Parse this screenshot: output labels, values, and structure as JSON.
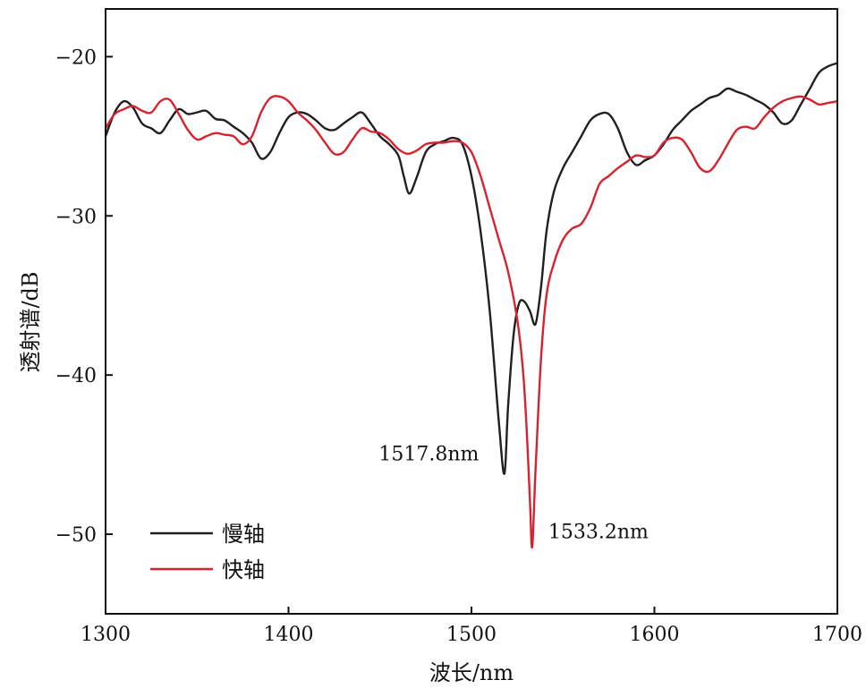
{
  "chart_data": {
    "type": "line",
    "title": "",
    "xlabel": "波长/nm",
    "ylabel": "透射谱/dB",
    "xlim": [
      1300,
      1700
    ],
    "ylim": [
      -55,
      -17
    ],
    "xticks": [
      1300,
      1400,
      1500,
      1600,
      1700
    ],
    "yticks": [
      -20,
      -30,
      -40,
      -50
    ],
    "xtick_labels": [
      "1300",
      "1400",
      "1500",
      "1600",
      "1700"
    ],
    "ytick_labels": [
      "−20",
      "−30",
      "−40",
      "−50"
    ],
    "grid": false,
    "legend_position": "bottom-left",
    "series": [
      {
        "name": "慢轴",
        "color": "#231f20",
        "x": [
          1300,
          1305,
          1310,
          1315,
          1320,
          1325,
          1330,
          1335,
          1340,
          1345,
          1350,
          1355,
          1360,
          1365,
          1370,
          1375,
          1380,
          1385,
          1390,
          1395,
          1400,
          1405,
          1410,
          1415,
          1420,
          1425,
          1430,
          1435,
          1440,
          1445,
          1450,
          1455,
          1460,
          1463,
          1466,
          1470,
          1475,
          1480,
          1485,
          1490,
          1495,
          1500,
          1505,
          1510,
          1515,
          1518,
          1520,
          1523,
          1526,
          1529,
          1532,
          1535,
          1538,
          1541,
          1545,
          1550,
          1555,
          1560,
          1565,
          1570,
          1575,
          1580,
          1585,
          1590,
          1595,
          1600,
          1605,
          1610,
          1615,
          1620,
          1625,
          1630,
          1635,
          1640,
          1645,
          1650,
          1655,
          1660,
          1665,
          1670,
          1675,
          1680,
          1685,
          1690,
          1695,
          1700
        ],
        "y": [
          -25.0,
          -23.5,
          -22.8,
          -23.2,
          -24.2,
          -24.5,
          -24.8,
          -24.0,
          -23.3,
          -23.6,
          -23.5,
          -23.4,
          -23.9,
          -24.0,
          -24.4,
          -24.8,
          -25.4,
          -26.4,
          -26.0,
          -24.8,
          -23.8,
          -23.5,
          -23.6,
          -24.0,
          -24.5,
          -24.6,
          -24.2,
          -23.8,
          -23.5,
          -24.2,
          -25.0,
          -25.5,
          -26.2,
          -27.5,
          -28.6,
          -27.6,
          -26.0,
          -25.5,
          -25.3,
          -25.1,
          -25.5,
          -27.5,
          -31.0,
          -36.0,
          -43.0,
          -46.2,
          -42.0,
          -37.5,
          -35.5,
          -35.4,
          -36.0,
          -36.8,
          -34.5,
          -31.0,
          -28.5,
          -27.0,
          -26.0,
          -25.0,
          -24.0,
          -23.6,
          -23.6,
          -24.5,
          -26.0,
          -26.8,
          -26.5,
          -26.2,
          -25.5,
          -24.6,
          -24.0,
          -23.4,
          -23.0,
          -22.6,
          -22.4,
          -22.0,
          -22.2,
          -22.4,
          -22.7,
          -23.0,
          -23.5,
          -24.2,
          -24.0,
          -23.0,
          -22.0,
          -21.0,
          -20.6,
          -20.4
        ]
      },
      {
        "name": "快轴",
        "color": "#d6232f",
        "x": [
          1300,
          1305,
          1310,
          1315,
          1320,
          1325,
          1330,
          1335,
          1340,
          1345,
          1350,
          1355,
          1360,
          1365,
          1370,
          1375,
          1380,
          1385,
          1390,
          1395,
          1400,
          1405,
          1410,
          1415,
          1420,
          1425,
          1430,
          1435,
          1440,
          1445,
          1450,
          1455,
          1460,
          1465,
          1470,
          1475,
          1480,
          1485,
          1490,
          1495,
          1500,
          1505,
          1510,
          1515,
          1520,
          1525,
          1528,
          1530,
          1532,
          1533.2,
          1535,
          1538,
          1541,
          1545,
          1550,
          1555,
          1560,
          1565,
          1570,
          1575,
          1580,
          1585,
          1590,
          1595,
          1600,
          1605,
          1610,
          1615,
          1620,
          1625,
          1630,
          1635,
          1640,
          1645,
          1650,
          1655,
          1660,
          1665,
          1670,
          1675,
          1680,
          1685,
          1690,
          1695,
          1700
        ],
        "y": [
          -24.5,
          -23.6,
          -23.3,
          -23.1,
          -23.4,
          -23.5,
          -22.8,
          -22.7,
          -23.6,
          -24.6,
          -25.2,
          -25.0,
          -24.8,
          -24.9,
          -25.0,
          -25.5,
          -25.0,
          -23.5,
          -22.6,
          -22.5,
          -22.8,
          -23.5,
          -24.0,
          -24.6,
          -25.4,
          -26.1,
          -26.0,
          -25.2,
          -24.5,
          -24.7,
          -24.8,
          -25.2,
          -25.8,
          -26.1,
          -25.9,
          -25.5,
          -25.4,
          -25.4,
          -25.3,
          -25.4,
          -26.0,
          -27.5,
          -29.5,
          -31.5,
          -33.5,
          -36.5,
          -39.5,
          -43.0,
          -48.0,
          -50.8,
          -46.0,
          -39.0,
          -35.0,
          -33.0,
          -31.5,
          -30.8,
          -30.5,
          -29.5,
          -28.0,
          -27.5,
          -27.0,
          -26.6,
          -26.2,
          -26.3,
          -26.2,
          -25.4,
          -25.1,
          -25.2,
          -26.0,
          -27.0,
          -27.2,
          -26.5,
          -25.5,
          -24.6,
          -24.4,
          -24.5,
          -23.8,
          -23.2,
          -22.8,
          -22.6,
          -22.5,
          -22.7,
          -23.0,
          -22.9,
          -22.8
        ]
      }
    ],
    "annotations": [
      {
        "text": "1517.8nm",
        "x": 1517.8,
        "y": -46.2
      },
      {
        "text": "1533.2nm",
        "x": 1533.2,
        "y": -50.8
      }
    ]
  }
}
